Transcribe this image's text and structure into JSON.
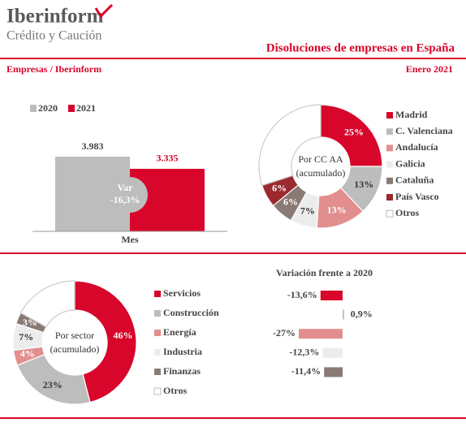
{
  "header": {
    "logo": "Iberinform",
    "tagline": "Crédito y Caución",
    "title": "Disoluciones de empresas en España",
    "source": "Empresas / Iberinform",
    "date": "Enero  2021"
  },
  "chart_data": [
    {
      "type": "bar",
      "categories": [
        "Mes"
      ],
      "series": [
        {
          "name": "2020",
          "color": "#bdbdbd",
          "values": [
            3983
          ],
          "value_labels": [
            "3.983"
          ]
        },
        {
          "name": "2021",
          "color": "#d7062a",
          "values": [
            3335
          ],
          "value_labels": [
            "3.335"
          ]
        }
      ],
      "annotations": [
        "Var",
        "-16,3%"
      ]
    },
    {
      "type": "pie",
      "center_text": [
        "Por CC AA",
        "(acumulado)"
      ],
      "categories": [
        "Madrid",
        "C. Valenciana",
        "Andalucía",
        "Galicia",
        "Cataluña",
        "País Vasco",
        "Otros"
      ],
      "values": [
        25,
        13,
        13,
        7,
        6,
        6,
        30
      ],
      "value_labels": [
        "25%",
        "13%",
        "13%",
        "7%",
        "6%",
        "6%",
        null
      ],
      "colors": [
        "#d7062a",
        "#bdbdbd",
        "#e38e8e",
        "#ececec",
        "#8a7a74",
        "#9b2a2e",
        "#ffffff"
      ]
    },
    {
      "type": "pie",
      "center_text": [
        "Por sector",
        "(acumulado)"
      ],
      "categories": [
        "Servicios",
        "Construcción",
        "Energía",
        "Industria",
        "Finanzas",
        "Otros"
      ],
      "values": [
        46,
        23,
        4,
        7,
        3,
        17
      ],
      "value_labels": [
        "46%",
        "23%",
        "4%",
        "7%",
        "3%",
        null
      ],
      "colors": [
        "#d7062a",
        "#bdbdbd",
        "#e38e8e",
        "#ececec",
        "#8a7a74",
        "#ffffff"
      ]
    },
    {
      "type": "hbar",
      "title": "Variación frente a 2020",
      "values": [
        -13.6,
        0.9,
        -27,
        -12.3,
        -11.4
      ],
      "value_labels": [
        "-13,6%",
        "0,9%",
        "-27%",
        "-12,3%",
        "-11,4%"
      ],
      "colors": [
        "#d7062a",
        "#bdbdbd",
        "#e38e8e",
        "#ececec",
        "#8a7a74"
      ]
    }
  ]
}
